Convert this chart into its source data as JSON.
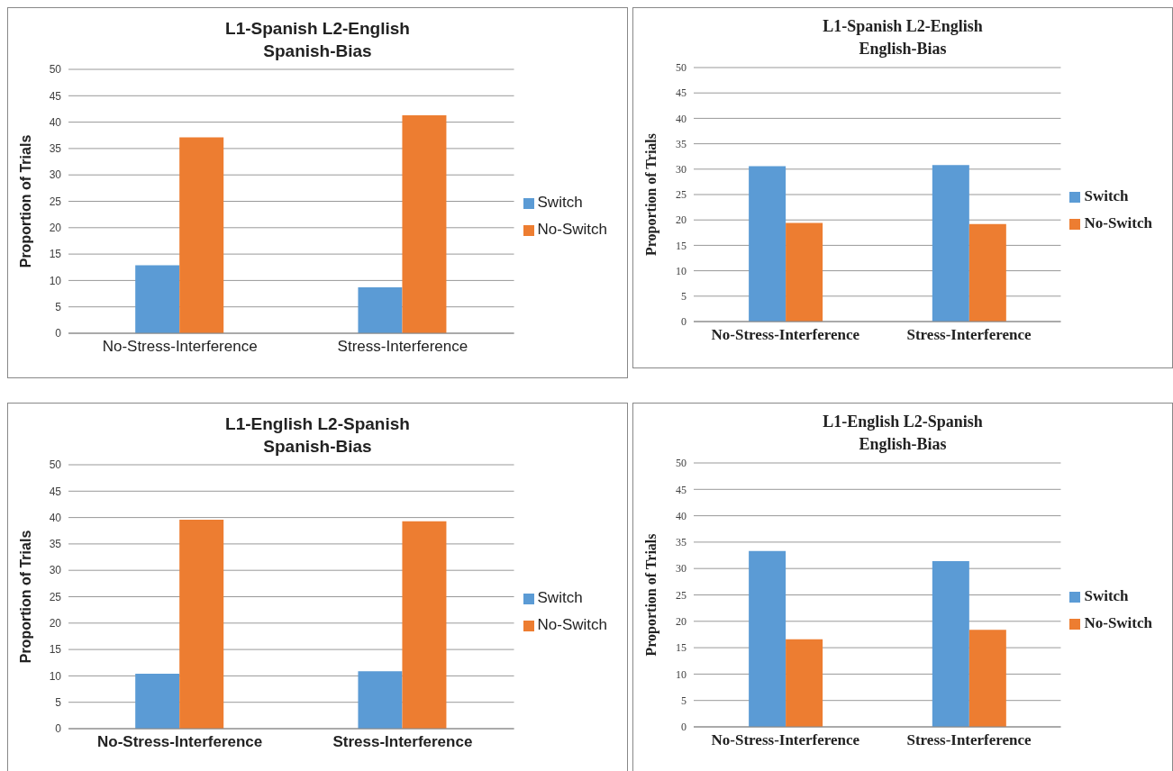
{
  "chart_data": [
    {
      "type": "bar",
      "title": "L1-Spanish L2-English",
      "subtitle": "Spanish-Bias",
      "ylabel": "Proportion of Trials",
      "categories": [
        "No-Stress-Interference",
        "Stress-Interference"
      ],
      "series": [
        {
          "name": "Switch",
          "color": "#5b9bd5",
          "values": [
            12.9,
            8.7
          ]
        },
        {
          "name": "No-Switch",
          "color": "#ed7d31",
          "values": [
            37.1,
            41.3
          ]
        }
      ],
      "ylim": [
        0,
        50
      ],
      "yticks": [
        0,
        5,
        10,
        15,
        20,
        25,
        30,
        35,
        40,
        45,
        50
      ],
      "grid": "y",
      "legend": "right"
    },
    {
      "type": "bar",
      "title": "L1-Spanish L2-English",
      "subtitle": "English-Bias",
      "ylabel": "Proportion of Trials",
      "categories": [
        "No-Stress-Interference",
        "Stress-Interference"
      ],
      "series": [
        {
          "name": "Switch",
          "color": "#5b9bd5",
          "values": [
            30.6,
            30.8
          ]
        },
        {
          "name": "No-Switch",
          "color": "#ed7d31",
          "values": [
            19.4,
            19.2
          ]
        }
      ],
      "ylim": [
        0,
        50
      ],
      "yticks": [
        0,
        5,
        10,
        15,
        20,
        25,
        30,
        35,
        40,
        45,
        50
      ],
      "grid": "y",
      "legend": "right"
    },
    {
      "type": "bar",
      "title": "L1-English L2-Spanish",
      "subtitle": "Spanish-Bias",
      "ylabel": "Proportion of Trials",
      "categories": [
        "No-Stress-Interference",
        "Stress-Interference"
      ],
      "series": [
        {
          "name": "Switch",
          "color": "#5b9bd5",
          "values": [
            10.4,
            10.9
          ]
        },
        {
          "name": "No-Switch",
          "color": "#ed7d31",
          "values": [
            39.6,
            39.3
          ]
        }
      ],
      "ylim": [
        0,
        50
      ],
      "yticks": [
        0,
        5,
        10,
        15,
        20,
        25,
        30,
        35,
        40,
        45,
        50
      ],
      "grid": "y",
      "legend": "right"
    },
    {
      "type": "bar",
      "title": "L1-English L2-Spanish",
      "subtitle": "English-Bias",
      "ylabel": "Proportion of Trials",
      "categories": [
        "No-Stress-Interference",
        "Stress-Interference"
      ],
      "series": [
        {
          "name": "Switch",
          "color": "#5b9bd5",
          "values": [
            33.3,
            31.4
          ]
        },
        {
          "name": "No-Switch",
          "color": "#ed7d31",
          "values": [
            16.6,
            18.4
          ]
        }
      ],
      "ylim": [
        0,
        50
      ],
      "yticks": [
        0,
        5,
        10,
        15,
        20,
        25,
        30,
        35,
        40,
        45,
        50
      ],
      "grid": "y",
      "legend": "right"
    }
  ]
}
